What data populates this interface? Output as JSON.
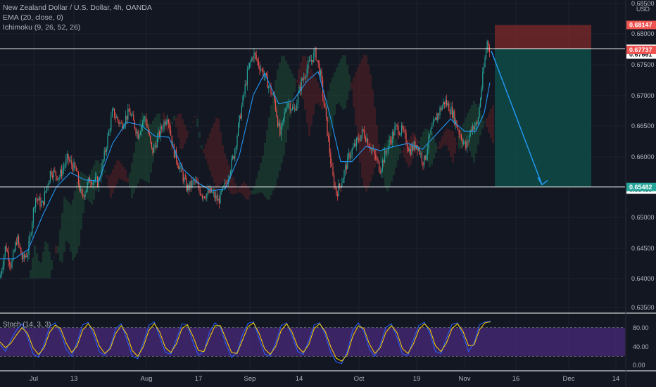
{
  "legend": {
    "symbol": "New Zealand Dollar / U.S. Dollar, 4h, OANDA",
    "ema": "EMA (20, close, 0)",
    "ichimoku": "Ichimoku (9, 26, 52, 26)"
  },
  "currency": "USD",
  "stoch_label": "Stoch (14, 3, 3)",
  "colors": {
    "background": "#131722",
    "up": "#26a69a",
    "down": "#ef5350",
    "ema": "#2196f3",
    "stoch_k": "#2962ff",
    "stoch_d": "#ffd600",
    "stoch_band": "#4a2a7a",
    "stop_zone": "#7e2a2a",
    "target_zone": "#0f4f4a",
    "arrow": "#2196f3"
  },
  "chart_data": [
    {
      "type": "candlestick",
      "title": "New Zealand Dollar / U.S. Dollar, 4h, OANDA",
      "x_ticks": [
        "Jul",
        "13",
        "Aug",
        "17",
        "Sep",
        "14",
        "Oct",
        "19",
        "Nov",
        "16",
        "Dec",
        "14"
      ],
      "y_ticks": [
        "0.68500",
        "0.68000",
        "0.67500",
        "0.67000",
        "0.66500",
        "0.66000",
        "0.65500",
        "0.65000",
        "0.64500",
        "0.64000",
        "0.63500"
      ],
      "ylim": [
        0.6345,
        0.685
      ],
      "grid": true,
      "price_path": [
        [
          0,
          0.6398
        ],
        [
          8,
          0.6452
        ],
        [
          16,
          0.6418
        ],
        [
          24,
          0.6465
        ],
        [
          32,
          0.6428
        ],
        [
          40,
          0.6442
        ],
        [
          50,
          0.6532
        ],
        [
          60,
          0.6518
        ],
        [
          72,
          0.6575
        ],
        [
          84,
          0.6565
        ],
        [
          96,
          0.6595
        ],
        [
          108,
          0.6575
        ],
        [
          116,
          0.653
        ],
        [
          128,
          0.6562
        ],
        [
          140,
          0.6555
        ],
        [
          150,
          0.661
        ],
        [
          160,
          0.6672
        ],
        [
          172,
          0.665
        ],
        [
          184,
          0.6672
        ],
        [
          196,
          0.6635
        ],
        [
          206,
          0.6665
        ],
        [
          216,
          0.6605
        ],
        [
          228,
          0.664
        ],
        [
          238,
          0.6668
        ],
        [
          246,
          0.661
        ],
        [
          256,
          0.6578
        ],
        [
          266,
          0.6545
        ],
        [
          276,
          0.6558
        ],
        [
          288,
          0.6535
        ],
        [
          300,
          0.654
        ],
        [
          310,
          0.6525
        ],
        [
          320,
          0.655
        ],
        [
          332,
          0.66
        ],
        [
          342,
          0.667
        ],
        [
          352,
          0.6738
        ],
        [
          360,
          0.6768
        ],
        [
          370,
          0.6745
        ],
        [
          380,
          0.672
        ],
        [
          390,
          0.669
        ],
        [
          398,
          0.6632
        ],
        [
          408,
          0.669
        ],
        [
          418,
          0.6672
        ],
        [
          428,
          0.672
        ],
        [
          438,
          0.6748
        ],
        [
          448,
          0.677
        ],
        [
          456,
          0.6728
        ],
        [
          464,
          0.665
        ],
        [
          472,
          0.6568
        ],
        [
          478,
          0.6538
        ],
        [
          486,
          0.656
        ],
        [
          496,
          0.66
        ],
        [
          506,
          0.662
        ],
        [
          516,
          0.664
        ],
        [
          528,
          0.661
        ],
        [
          540,
          0.6578
        ],
        [
          552,
          0.6618
        ],
        [
          562,
          0.6645
        ],
        [
          572,
          0.664
        ],
        [
          582,
          0.6608
        ],
        [
          592,
          0.662
        ],
        [
          602,
          0.6588
        ],
        [
          612,
          0.6638
        ],
        [
          622,
          0.6668
        ],
        [
          632,
          0.669
        ],
        [
          642,
          0.6672
        ],
        [
          652,
          0.664
        ],
        [
          662,
          0.6612
        ],
        [
          670,
          0.6648
        ],
        [
          678,
          0.665
        ],
        [
          686,
          0.673
        ],
        [
          692,
          0.6788
        ],
        [
          697,
          0.6772
        ]
      ],
      "ema_path": [
        [
          0,
          0.643
        ],
        [
          20,
          0.643
        ],
        [
          40,
          0.6445
        ],
        [
          60,
          0.65
        ],
        [
          80,
          0.6548
        ],
        [
          100,
          0.6572
        ],
        [
          120,
          0.656
        ],
        [
          140,
          0.6558
        ],
        [
          160,
          0.662
        ],
        [
          180,
          0.6655
        ],
        [
          200,
          0.665
        ],
        [
          220,
          0.6632
        ],
        [
          240,
          0.663
        ],
        [
          260,
          0.6578
        ],
        [
          280,
          0.6556
        ],
        [
          300,
          0.6542
        ],
        [
          320,
          0.6545
        ],
        [
          340,
          0.66
        ],
        [
          360,
          0.67
        ],
        [
          376,
          0.6735
        ],
        [
          396,
          0.6685
        ],
        [
          416,
          0.669
        ],
        [
          436,
          0.6722
        ],
        [
          452,
          0.6738
        ],
        [
          468,
          0.667
        ],
        [
          484,
          0.659
        ],
        [
          500,
          0.659
        ],
        [
          520,
          0.6615
        ],
        [
          540,
          0.6608
        ],
        [
          560,
          0.6615
        ],
        [
          580,
          0.662
        ],
        [
          600,
          0.661
        ],
        [
          620,
          0.6635
        ],
        [
          640,
          0.666
        ],
        [
          660,
          0.664
        ],
        [
          676,
          0.664
        ],
        [
          688,
          0.667
        ],
        [
          696,
          0.672
        ]
      ],
      "levels": [
        {
          "price": 0.67755,
          "label": "0.67755",
          "color": "#ffffff",
          "badge": "#ffffff"
        },
        {
          "price": 0.67737,
          "label": "0.67737",
          "color": "#ef5350",
          "badge": "#ef5350"
        },
        {
          "price": 0.65482,
          "label": "0.65482",
          "color": "#ffffff",
          "badge": "#26a69a"
        }
      ],
      "price_tags": [
        {
          "price": 0.68147,
          "label": "0.68147",
          "badge": "#ef5350"
        },
        {
          "price": 0.67661,
          "label": "0.67661",
          "badge": "#ffffff"
        },
        {
          "price": 0.65439,
          "label": "0.65439",
          "badge": "#ffffff"
        }
      ],
      "position": {
        "type": "short",
        "entry": 0.67755,
        "stop": 0.68147,
        "target": 0.65482
      }
    },
    {
      "type": "line",
      "title": "Stoch (14, 3, 3)",
      "y_ticks": [
        "80.00",
        "40.00",
        "0.00"
      ],
      "ylim": [
        0,
        100
      ],
      "band": [
        20,
        80
      ],
      "k_values": [
        45,
        30,
        55,
        75,
        88,
        60,
        25,
        18,
        45,
        82,
        90,
        70,
        35,
        20,
        50,
        86,
        91,
        65,
        30,
        22,
        40,
        78,
        88,
        55,
        20,
        15,
        48,
        85,
        92,
        60,
        28,
        25,
        55,
        88,
        86,
        50,
        22,
        30,
        70,
        90,
        80,
        45,
        18,
        28,
        65,
        89,
        92,
        58,
        25,
        20,
        48,
        84,
        90,
        62,
        30,
        24,
        52,
        86,
        90,
        65,
        28,
        8,
        5,
        30,
        75,
        90,
        72,
        35,
        20,
        45,
        80,
        88,
        60,
        25,
        22,
        55,
        85,
        91,
        68,
        30,
        26,
        58,
        87,
        90,
        64,
        30,
        48,
        86,
        92,
        94
      ],
      "d_values": [
        50,
        38,
        48,
        65,
        80,
        68,
        38,
        24,
        38,
        70,
        85,
        78,
        48,
        28,
        42,
        75,
        88,
        74,
        42,
        26,
        36,
        68,
        84,
        66,
        32,
        20,
        40,
        74,
        88,
        70,
        38,
        28,
        46,
        78,
        86,
        62,
        32,
        30,
        58,
        84,
        84,
        56,
        28,
        26,
        54,
        82,
        90,
        68,
        36,
        24,
        40,
        74,
        88,
        70,
        40,
        28,
        44,
        78,
        88,
        72,
        40,
        16,
        10,
        24,
        62,
        84,
        78,
        46,
        26,
        38,
        70,
        84,
        70,
        36,
        26,
        46,
        76,
        88,
        76,
        42,
        30,
        48,
        78,
        88,
        72,
        42,
        44,
        76,
        90,
        92
      ]
    }
  ]
}
